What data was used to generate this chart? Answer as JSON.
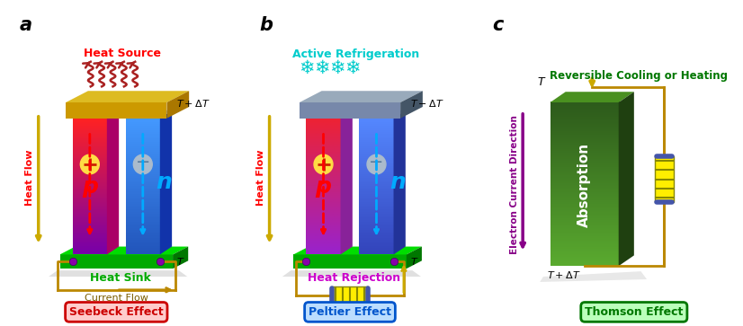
{
  "fig_width": 8.26,
  "fig_height": 3.63,
  "dpi": 100,
  "bg_color": "#ffffff",
  "label_a": "a",
  "label_b": "b",
  "label_c": "c",
  "seebeck_text": "Seebeck Effect",
  "peltier_text": "Peltier Effect",
  "thomson_text": "Thomson Effect",
  "current_flow_text": "Current Flow",
  "heat_flow_text": "Heat Flow",
  "heat_source_text": "Heat Source",
  "heat_sink_text": "Heat Sink",
  "heat_rejection_text": "Heat Rejection",
  "active_refrig_text": "Active Refrigeration",
  "reversible_text": "Reversible Cooling or Heating",
  "electron_current_text": "Electron Current Direction",
  "absorption_text": "Absorption",
  "gold_color": "#ccaa00",
  "green_dark": "#00aa00",
  "green_light": "#00dd00",
  "green_darker": "#007700",
  "p_red_top": "#ff2222",
  "p_purple_bot": "#7700aa",
  "n_blue_top": "#4499ff",
  "n_blue_bot": "#2255bb",
  "heat_plate_color": "#cc9900",
  "heat_plate_top": "#ddbb22",
  "heat_plate_right": "#aa7700",
  "cold_plate_color": "#7788aa",
  "cold_plate_top": "#99aabb",
  "cold_plate_right": "#445566",
  "seebeck_fg": "#cc0000",
  "seebeck_bg": "#ffcccc",
  "seebeck_edge": "#cc0000",
  "peltier_fg": "#0055cc",
  "peltier_bg": "#bbddff",
  "peltier_edge": "#0055cc",
  "thomson_fg": "#007700",
  "thomson_bg": "#bbffbb",
  "thomson_edge": "#007700",
  "heat_rejection_color": "#cc00cc",
  "cyan_color": "#00cccc",
  "purple_color": "#880088",
  "wave_color": "#aa2222",
  "circuit_color": "#bb8800",
  "dot_color": "#8800aa",
  "battery_yellow": "#ffee00",
  "battery_stripe": "#888800",
  "battery_cap": "#4455aa"
}
